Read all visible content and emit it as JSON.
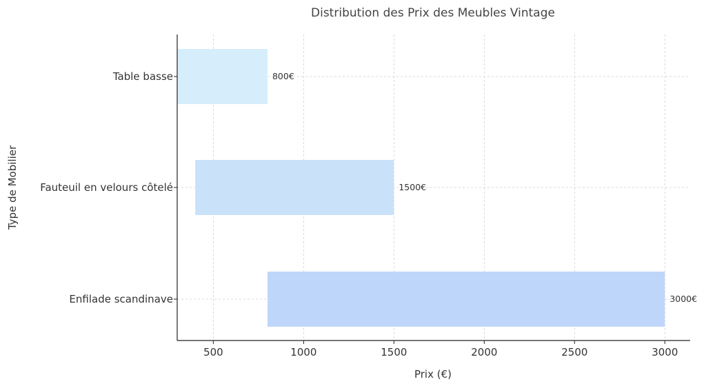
{
  "chart_data": {
    "type": "bar",
    "orientation": "horizontal",
    "title": "Distribution des Prix des Meubles Vintage",
    "xlabel": "Prix (€)",
    "ylabel": "Type de Mobilier",
    "xlim": [
      300,
      3140
    ],
    "xticks": [
      500,
      1000,
      1500,
      2000,
      2500,
      3000
    ],
    "xtick_labels": [
      "500",
      "1000",
      "1500",
      "2000",
      "2500",
      "3000"
    ],
    "grid": true,
    "categories": [
      "Table basse",
      "Fauteuil en velours côtelé",
      "Enfilade scandinave"
    ],
    "bars": [
      {
        "category": "Table basse",
        "start": 300,
        "end": 800,
        "label": "800€",
        "color": "#d6eefb"
      },
      {
        "category": "Fauteuil en velours côtelé",
        "start": 400,
        "end": 1500,
        "label": "1500€",
        "color": "#c9e1f9"
      },
      {
        "category": "Enfilade scandinave",
        "start": 800,
        "end": 3000,
        "label": "3000€",
        "color": "#bfd6fb"
      }
    ]
  }
}
